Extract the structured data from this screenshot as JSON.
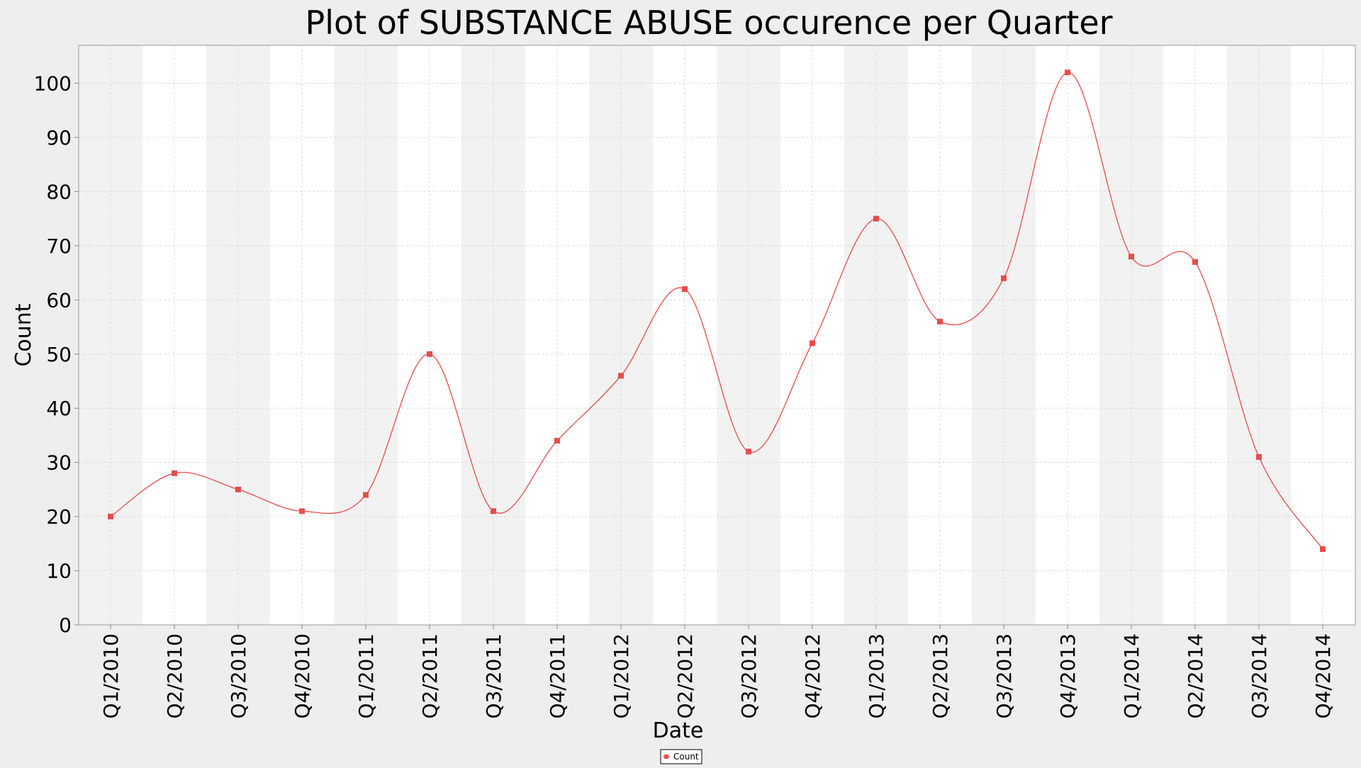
{
  "chart_data": {
    "type": "line",
    "title": "Plot of SUBSTANCE ABUSE occurence per Quarter",
    "xlabel": "Date",
    "ylabel": "Count",
    "ylim": [
      0,
      107
    ],
    "yticks": [
      0,
      10,
      20,
      30,
      40,
      50,
      60,
      70,
      80,
      90,
      100
    ],
    "grid": true,
    "legend_position": "bottom-center",
    "categories": [
      "Q1/2010",
      "Q2/2010",
      "Q3/2010",
      "Q4/2010",
      "Q1/2011",
      "Q2/2011",
      "Q3/2011",
      "Q4/2011",
      "Q1/2012",
      "Q2/2012",
      "Q3/2012",
      "Q4/2012",
      "Q1/2013",
      "Q2/2013",
      "Q3/2013",
      "Q4/2013",
      "Q1/2014",
      "Q2/2014",
      "Q3/2014",
      "Q4/2014"
    ],
    "series": [
      {
        "name": "Count",
        "color": "#e84c4c",
        "values": [
          20,
          28,
          25,
          21,
          24,
          50,
          21,
          34,
          46,
          62,
          32,
          52,
          75,
          56,
          64,
          102,
          68,
          67,
          31,
          14
        ]
      }
    ],
    "colors": {
      "background": "#eeeeee",
      "plot_band_dark": "#f2f2f2",
      "plot_band_light": "#ffffff",
      "gridline": "#d9d9d9",
      "axis": "#888888",
      "text": "#000000"
    }
  }
}
